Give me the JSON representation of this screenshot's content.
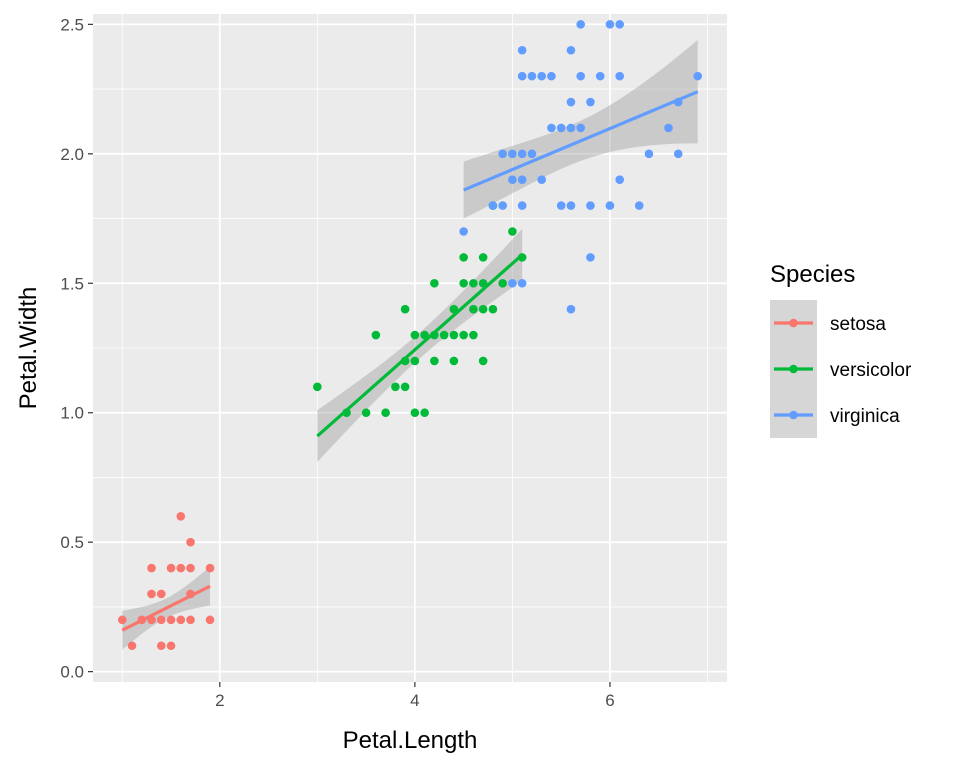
{
  "chart_data": {
    "type": "scatter",
    "title": "",
    "xlabel": "Petal.Length",
    "ylabel": "Petal.Width",
    "xlim": [
      0.7,
      7.2
    ],
    "ylim": [
      -0.04,
      2.54
    ],
    "x_ticks": [
      2,
      4,
      6
    ],
    "x_tick_labels": [
      "2",
      "4",
      "6"
    ],
    "y_ticks": [
      0,
      0.5,
      1,
      1.5,
      2,
      2.5
    ],
    "y_tick_labels": [
      "0.0",
      "0.5",
      "1.0",
      "1.5",
      "2.0",
      "2.5"
    ],
    "grid": true,
    "background": "#ebebeb",
    "grid_color": "#ffffff",
    "smooth": "linear fit with confidence band",
    "band_color": "#999999",
    "legend": {
      "title": "Species",
      "placement": "right"
    },
    "series": [
      {
        "name": "setosa",
        "color": "#f8766d",
        "fit": {
          "x": [
            1.0,
            1.9
          ],
          "y": [
            0.16,
            0.33
          ],
          "band_halfwidth": [
            0.075,
            0.075
          ]
        },
        "points": [
          [
            1.0,
            0.2
          ],
          [
            1.1,
            0.1
          ],
          [
            1.2,
            0.2
          ],
          [
            1.3,
            0.2
          ],
          [
            1.3,
            0.3
          ],
          [
            1.3,
            0.4
          ],
          [
            1.4,
            0.1
          ],
          [
            1.4,
            0.2
          ],
          [
            1.4,
            0.3
          ],
          [
            1.5,
            0.1
          ],
          [
            1.5,
            0.2
          ],
          [
            1.5,
            0.4
          ],
          [
            1.6,
            0.2
          ],
          [
            1.6,
            0.4
          ],
          [
            1.6,
            0.6
          ],
          [
            1.7,
            0.2
          ],
          [
            1.7,
            0.3
          ],
          [
            1.7,
            0.4
          ],
          [
            1.7,
            0.5
          ],
          [
            1.9,
            0.2
          ],
          [
            1.9,
            0.4
          ]
        ]
      },
      {
        "name": "versicolor",
        "color": "#00ba38",
        "fit": {
          "x": [
            3.0,
            5.1
          ],
          "y": [
            0.91,
            1.61
          ],
          "band_halfwidth": [
            0.1,
            0.1
          ]
        },
        "points": [
          [
            3.0,
            1.1
          ],
          [
            3.3,
            1.0
          ],
          [
            3.5,
            1.0
          ],
          [
            3.6,
            1.3
          ],
          [
            3.7,
            1.0
          ],
          [
            3.8,
            1.1
          ],
          [
            3.9,
            1.1
          ],
          [
            3.9,
            1.2
          ],
          [
            3.9,
            1.4
          ],
          [
            4.0,
            1.0
          ],
          [
            4.0,
            1.2
          ],
          [
            4.0,
            1.3
          ],
          [
            4.1,
            1.0
          ],
          [
            4.1,
            1.3
          ],
          [
            4.2,
            1.2
          ],
          [
            4.2,
            1.3
          ],
          [
            4.2,
            1.5
          ],
          [
            4.3,
            1.3
          ],
          [
            4.4,
            1.2
          ],
          [
            4.4,
            1.3
          ],
          [
            4.4,
            1.4
          ],
          [
            4.5,
            1.3
          ],
          [
            4.5,
            1.5
          ],
          [
            4.5,
            1.6
          ],
          [
            4.6,
            1.3
          ],
          [
            4.6,
            1.4
          ],
          [
            4.6,
            1.5
          ],
          [
            4.7,
            1.2
          ],
          [
            4.7,
            1.4
          ],
          [
            4.7,
            1.5
          ],
          [
            4.7,
            1.6
          ],
          [
            4.8,
            1.4
          ],
          [
            4.8,
            1.8
          ],
          [
            4.9,
            1.5
          ],
          [
            5.0,
            1.7
          ],
          [
            5.1,
            1.6
          ]
        ]
      },
      {
        "name": "virginica",
        "color": "#619cff",
        "fit": {
          "x": [
            4.5,
            6.9
          ],
          "y": [
            1.86,
            2.24
          ],
          "band_halfwidth": [
            0.11,
            0.2
          ]
        },
        "points": [
          [
            4.5,
            1.7
          ],
          [
            4.8,
            1.8
          ],
          [
            4.9,
            1.8
          ],
          [
            4.9,
            2.0
          ],
          [
            5.0,
            1.5
          ],
          [
            5.0,
            1.9
          ],
          [
            5.0,
            2.0
          ],
          [
            5.1,
            1.5
          ],
          [
            5.1,
            1.8
          ],
          [
            5.1,
            1.9
          ],
          [
            5.1,
            2.0
          ],
          [
            5.1,
            2.3
          ],
          [
            5.1,
            2.4
          ],
          [
            5.2,
            2.0
          ],
          [
            5.2,
            2.3
          ],
          [
            5.3,
            1.9
          ],
          [
            5.3,
            2.3
          ],
          [
            5.4,
            2.1
          ],
          [
            5.4,
            2.3
          ],
          [
            5.5,
            1.8
          ],
          [
            5.5,
            2.1
          ],
          [
            5.6,
            1.4
          ],
          [
            5.6,
            1.8
          ],
          [
            5.6,
            2.1
          ],
          [
            5.6,
            2.2
          ],
          [
            5.6,
            2.4
          ],
          [
            5.7,
            2.1
          ],
          [
            5.7,
            2.3
          ],
          [
            5.7,
            2.5
          ],
          [
            5.8,
            1.6
          ],
          [
            5.8,
            1.8
          ],
          [
            5.8,
            2.2
          ],
          [
            5.9,
            2.3
          ],
          [
            6.0,
            1.8
          ],
          [
            6.0,
            2.5
          ],
          [
            6.1,
            1.9
          ],
          [
            6.1,
            2.3
          ],
          [
            6.1,
            2.5
          ],
          [
            6.3,
            1.8
          ],
          [
            6.4,
            2.0
          ],
          [
            6.6,
            2.1
          ],
          [
            6.7,
            2.0
          ],
          [
            6.7,
            2.2
          ],
          [
            6.9,
            2.3
          ]
        ]
      }
    ]
  }
}
